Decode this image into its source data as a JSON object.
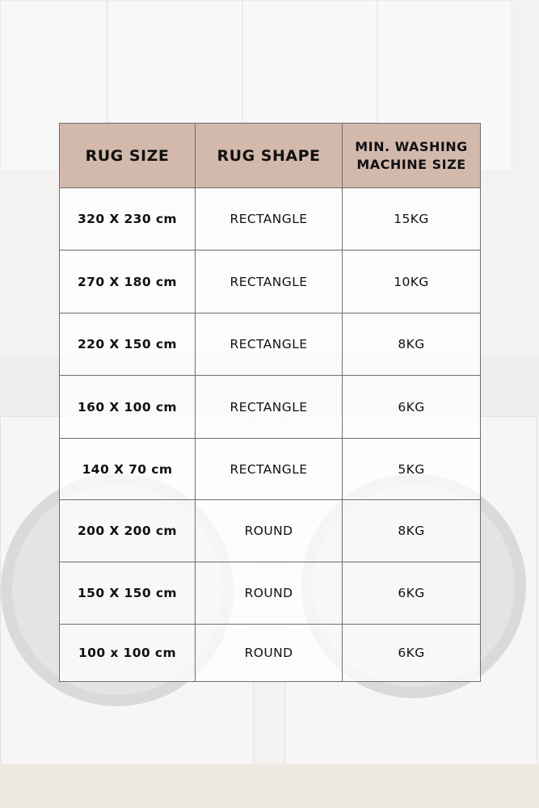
{
  "colors": {
    "header_bg": "#d3b9ac",
    "border": "#6e6e6e"
  },
  "table": {
    "headers": [
      "RUG SIZE",
      "RUG SHAPE",
      "MIN. WASHING MACHINE SIZE"
    ],
    "rows": [
      {
        "size": "320 X 230 cm",
        "shape": "RECTANGLE",
        "machine": "15KG"
      },
      {
        "size": "270 X 180 cm",
        "shape": "RECTANGLE",
        "machine": "10KG"
      },
      {
        "size": "220 X 150 cm",
        "shape": "RECTANGLE",
        "machine": "8KG"
      },
      {
        "size": "160 X 100 cm",
        "shape": "RECTANGLE",
        "machine": "6KG"
      },
      {
        "size": "140 X 70 cm",
        "shape": "RECTANGLE",
        "machine": "5KG"
      },
      {
        "size": "200 X 200 cm",
        "shape": "ROUND",
        "machine": "8KG"
      },
      {
        "size": "150 X 150 cm",
        "shape": "ROUND",
        "machine": "6KG"
      },
      {
        "size": "100 x 100 cm",
        "shape": "ROUND",
        "machine": "6KG"
      }
    ]
  }
}
